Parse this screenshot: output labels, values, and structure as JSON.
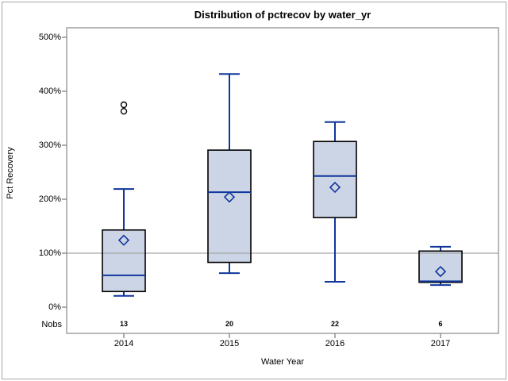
{
  "chart_data": {
    "type": "box",
    "title": "Distribution of pctrecov by water_yr",
    "xlabel": "Water Year",
    "ylabel": "Pct Recovery",
    "nobs_label": "Nobs",
    "y_ticks": [
      "0%",
      "100%",
      "200%",
      "300%",
      "400%",
      "500%"
    ],
    "y_tick_values": [
      0,
      100,
      200,
      300,
      400,
      500
    ],
    "ylim": [
      0,
      518
    ],
    "reference_line": 100,
    "grid": "off",
    "legend": "none",
    "categories": [
      "2014",
      "2015",
      "2016",
      "2017"
    ],
    "nobs": [
      "13",
      "20",
      "22",
      "6"
    ],
    "series": [
      {
        "category": "2014",
        "n": 13,
        "whisker_low": 21,
        "q1": 29,
        "median": 59,
        "q3": 143,
        "whisker_high": 219,
        "mean": 124,
        "outliers": [
          363,
          375
        ]
      },
      {
        "category": "2015",
        "n": 20,
        "whisker_low": 63,
        "q1": 83,
        "median": 213,
        "q3": 291,
        "whisker_high": 432,
        "mean": 204,
        "outliers": []
      },
      {
        "category": "2016",
        "n": 22,
        "whisker_low": 47,
        "q1": 166,
        "median": 243,
        "q3": 307,
        "whisker_high": 343,
        "mean": 222,
        "outliers": []
      },
      {
        "category": "2017",
        "n": 6,
        "whisker_low": 41,
        "q1": 46,
        "median": 48,
        "q3": 104,
        "whisker_high": 112,
        "mean": 66,
        "outliers": []
      }
    ],
    "colors": {
      "box_fill": "#ccd5e5",
      "box_border": "#000000",
      "line": "#10369c",
      "reference_line": "#a6a6a6",
      "plot_border": "#919191",
      "tick": "#808080",
      "text": "#000000"
    }
  }
}
